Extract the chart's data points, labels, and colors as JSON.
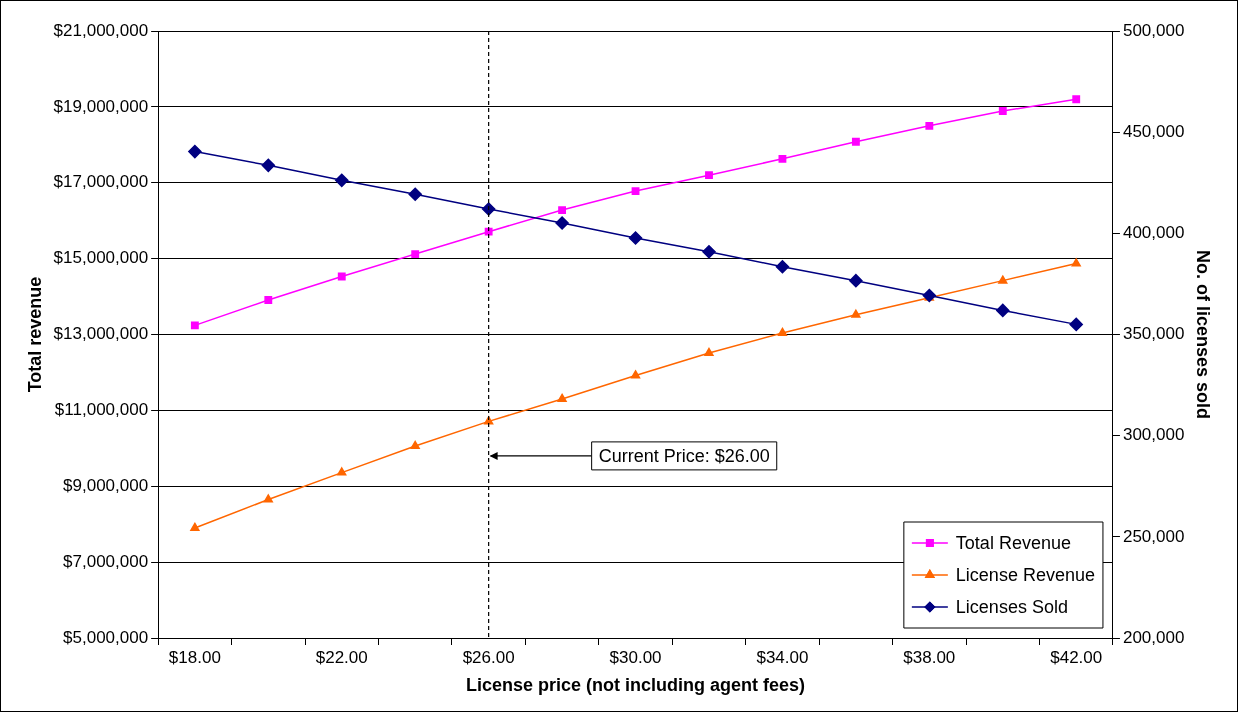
{
  "chart_data": {
    "type": "line",
    "xlabel": "License price (not including agent fees)",
    "ylabel": "Total revenue",
    "y2label": "No. of licenses sold",
    "categories": [
      "$18.00",
      null,
      "$22.00",
      null,
      "$26.00",
      null,
      "$30.00",
      null,
      "$34.00",
      null,
      "$38.00",
      null,
      "$42.00"
    ],
    "series": [
      {
        "name": "Total Revenue",
        "color": "#ff00ff",
        "marker": "square",
        "values": [
          13240000,
          13910000,
          14530000,
          15120000,
          15710000,
          16280000,
          16780000,
          17200000,
          17630000,
          18080000,
          18500000,
          18890000,
          19200000
        ]
      },
      {
        "name": "License Revenue",
        "color": "#ff6600",
        "marker": "triangle",
        "values": [
          7900000,
          8650000,
          9360000,
          10060000,
          10710000,
          11300000,
          11920000,
          12510000,
          13040000,
          13520000,
          13970000,
          14420000,
          14870000
        ]
      },
      {
        "name": "Licenses Sold",
        "color": "#000080",
        "marker": "diamond",
        "axis": "y2",
        "values": [
          440400,
          433600,
          426200,
          419300,
          412000,
          405100,
          397700,
          390900,
          383500,
          376600,
          369300,
          361900,
          355000
        ]
      }
    ],
    "ylim": [
      5000000,
      21000000
    ],
    "yticks": [
      {
        "value": 5000000,
        "label": "$5,000,000"
      },
      {
        "value": 7000000,
        "label": "$7,000,000"
      },
      {
        "value": 9000000,
        "label": "$9,000,000"
      },
      {
        "value": 11000000,
        "label": "$11,000,000"
      },
      {
        "value": 13000000,
        "label": "$13,000,000"
      },
      {
        "value": 15000000,
        "label": "$15,000,000"
      },
      {
        "value": 17000000,
        "label": "$17,000,000"
      },
      {
        "value": 19000000,
        "label": "$19,000,000"
      },
      {
        "value": 21000000,
        "label": "$21,000,000"
      }
    ],
    "y2lim": [
      200000,
      500000
    ],
    "y2ticks": [
      {
        "value": 200000,
        "label": "200,000"
      },
      {
        "value": 250000,
        "label": "250,000"
      },
      {
        "value": 300000,
        "label": "300,000"
      },
      {
        "value": 350000,
        "label": "350,000"
      },
      {
        "value": 400000,
        "label": "400,000"
      },
      {
        "value": 450000,
        "label": "450,000"
      },
      {
        "value": 500000,
        "label": "500,000"
      }
    ],
    "ref_lines": [
      {
        "axis": "x",
        "value": "$26.00",
        "color": "#000000",
        "line_style": "dashed"
      }
    ],
    "annotations": [
      {
        "text": "Current Price: $26.00",
        "x": "$26.00",
        "y": 9800000
      }
    ],
    "grid": "y",
    "legend": "bottom right"
  }
}
